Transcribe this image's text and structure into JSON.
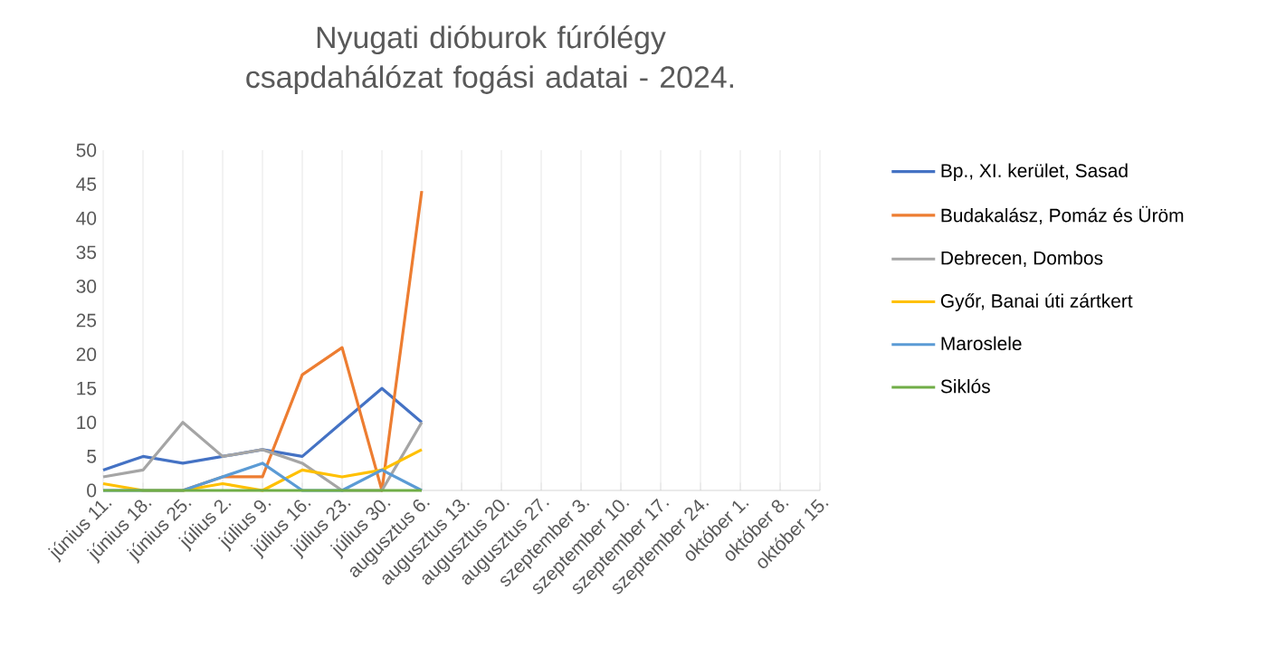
{
  "chart_data": {
    "type": "line",
    "title": "Nyugati dióburok fúrólégy csapdahálózat fogási adatai - 2024.",
    "categories": [
      "június 11.",
      "június 18.",
      "június 25.",
      "július 2.",
      "július 9.",
      "július 16.",
      "július 23.",
      "július 30.",
      "augusztus 6.",
      "augusztus 13.",
      "augusztus 20.",
      "augusztus 27.",
      "szeptember 3.",
      "szeptember 10.",
      "szeptember 17.",
      "szeptember 24.",
      "október 1.",
      "október 8.",
      "október 15."
    ],
    "series": [
      {
        "name": "Bp., XI. kerület, Sasad",
        "color": "#4472c4",
        "values": [
          3,
          5,
          4,
          5,
          6,
          5,
          10,
          15,
          10,
          null,
          null,
          null,
          null,
          null,
          null,
          null,
          null,
          null,
          null
        ]
      },
      {
        "name": "Budakalász, Pomáz és Üröm",
        "color": "#ed7d31",
        "values": [
          null,
          null,
          0,
          2,
          2,
          17,
          21,
          0,
          44,
          null,
          null,
          null,
          null,
          null,
          null,
          null,
          null,
          null,
          null
        ]
      },
      {
        "name": "Debrecen, Dombos",
        "color": "#a5a5a5",
        "values": [
          2,
          3,
          10,
          5,
          6,
          4,
          0,
          0,
          10,
          null,
          null,
          null,
          null,
          null,
          null,
          null,
          null,
          null,
          null
        ]
      },
      {
        "name": "Győr, Banai úti zártkert",
        "color": "#ffc000",
        "values": [
          1,
          0,
          0,
          1,
          0,
          3,
          2,
          3,
          6,
          null,
          null,
          null,
          null,
          null,
          null,
          null,
          null,
          null,
          null
        ]
      },
      {
        "name": "Maroslele",
        "color": "#5b9bd5",
        "values": [
          0,
          0,
          0,
          2,
          4,
          0,
          0,
          3,
          0,
          null,
          null,
          null,
          null,
          null,
          null,
          null,
          null,
          null,
          null
        ]
      },
      {
        "name": "Siklós",
        "color": "#70ad47",
        "values": [
          0,
          0,
          0,
          0,
          0,
          0,
          0,
          0,
          0,
          null,
          null,
          null,
          null,
          null,
          null,
          null,
          null,
          null,
          null
        ]
      }
    ],
    "ylim": [
      0,
      50
    ],
    "yticks": [
      0,
      5,
      10,
      15,
      20,
      25,
      30,
      35,
      40,
      45,
      50
    ],
    "grid": "x",
    "legend": "right",
    "marker": "none",
    "line_style": "solid"
  }
}
